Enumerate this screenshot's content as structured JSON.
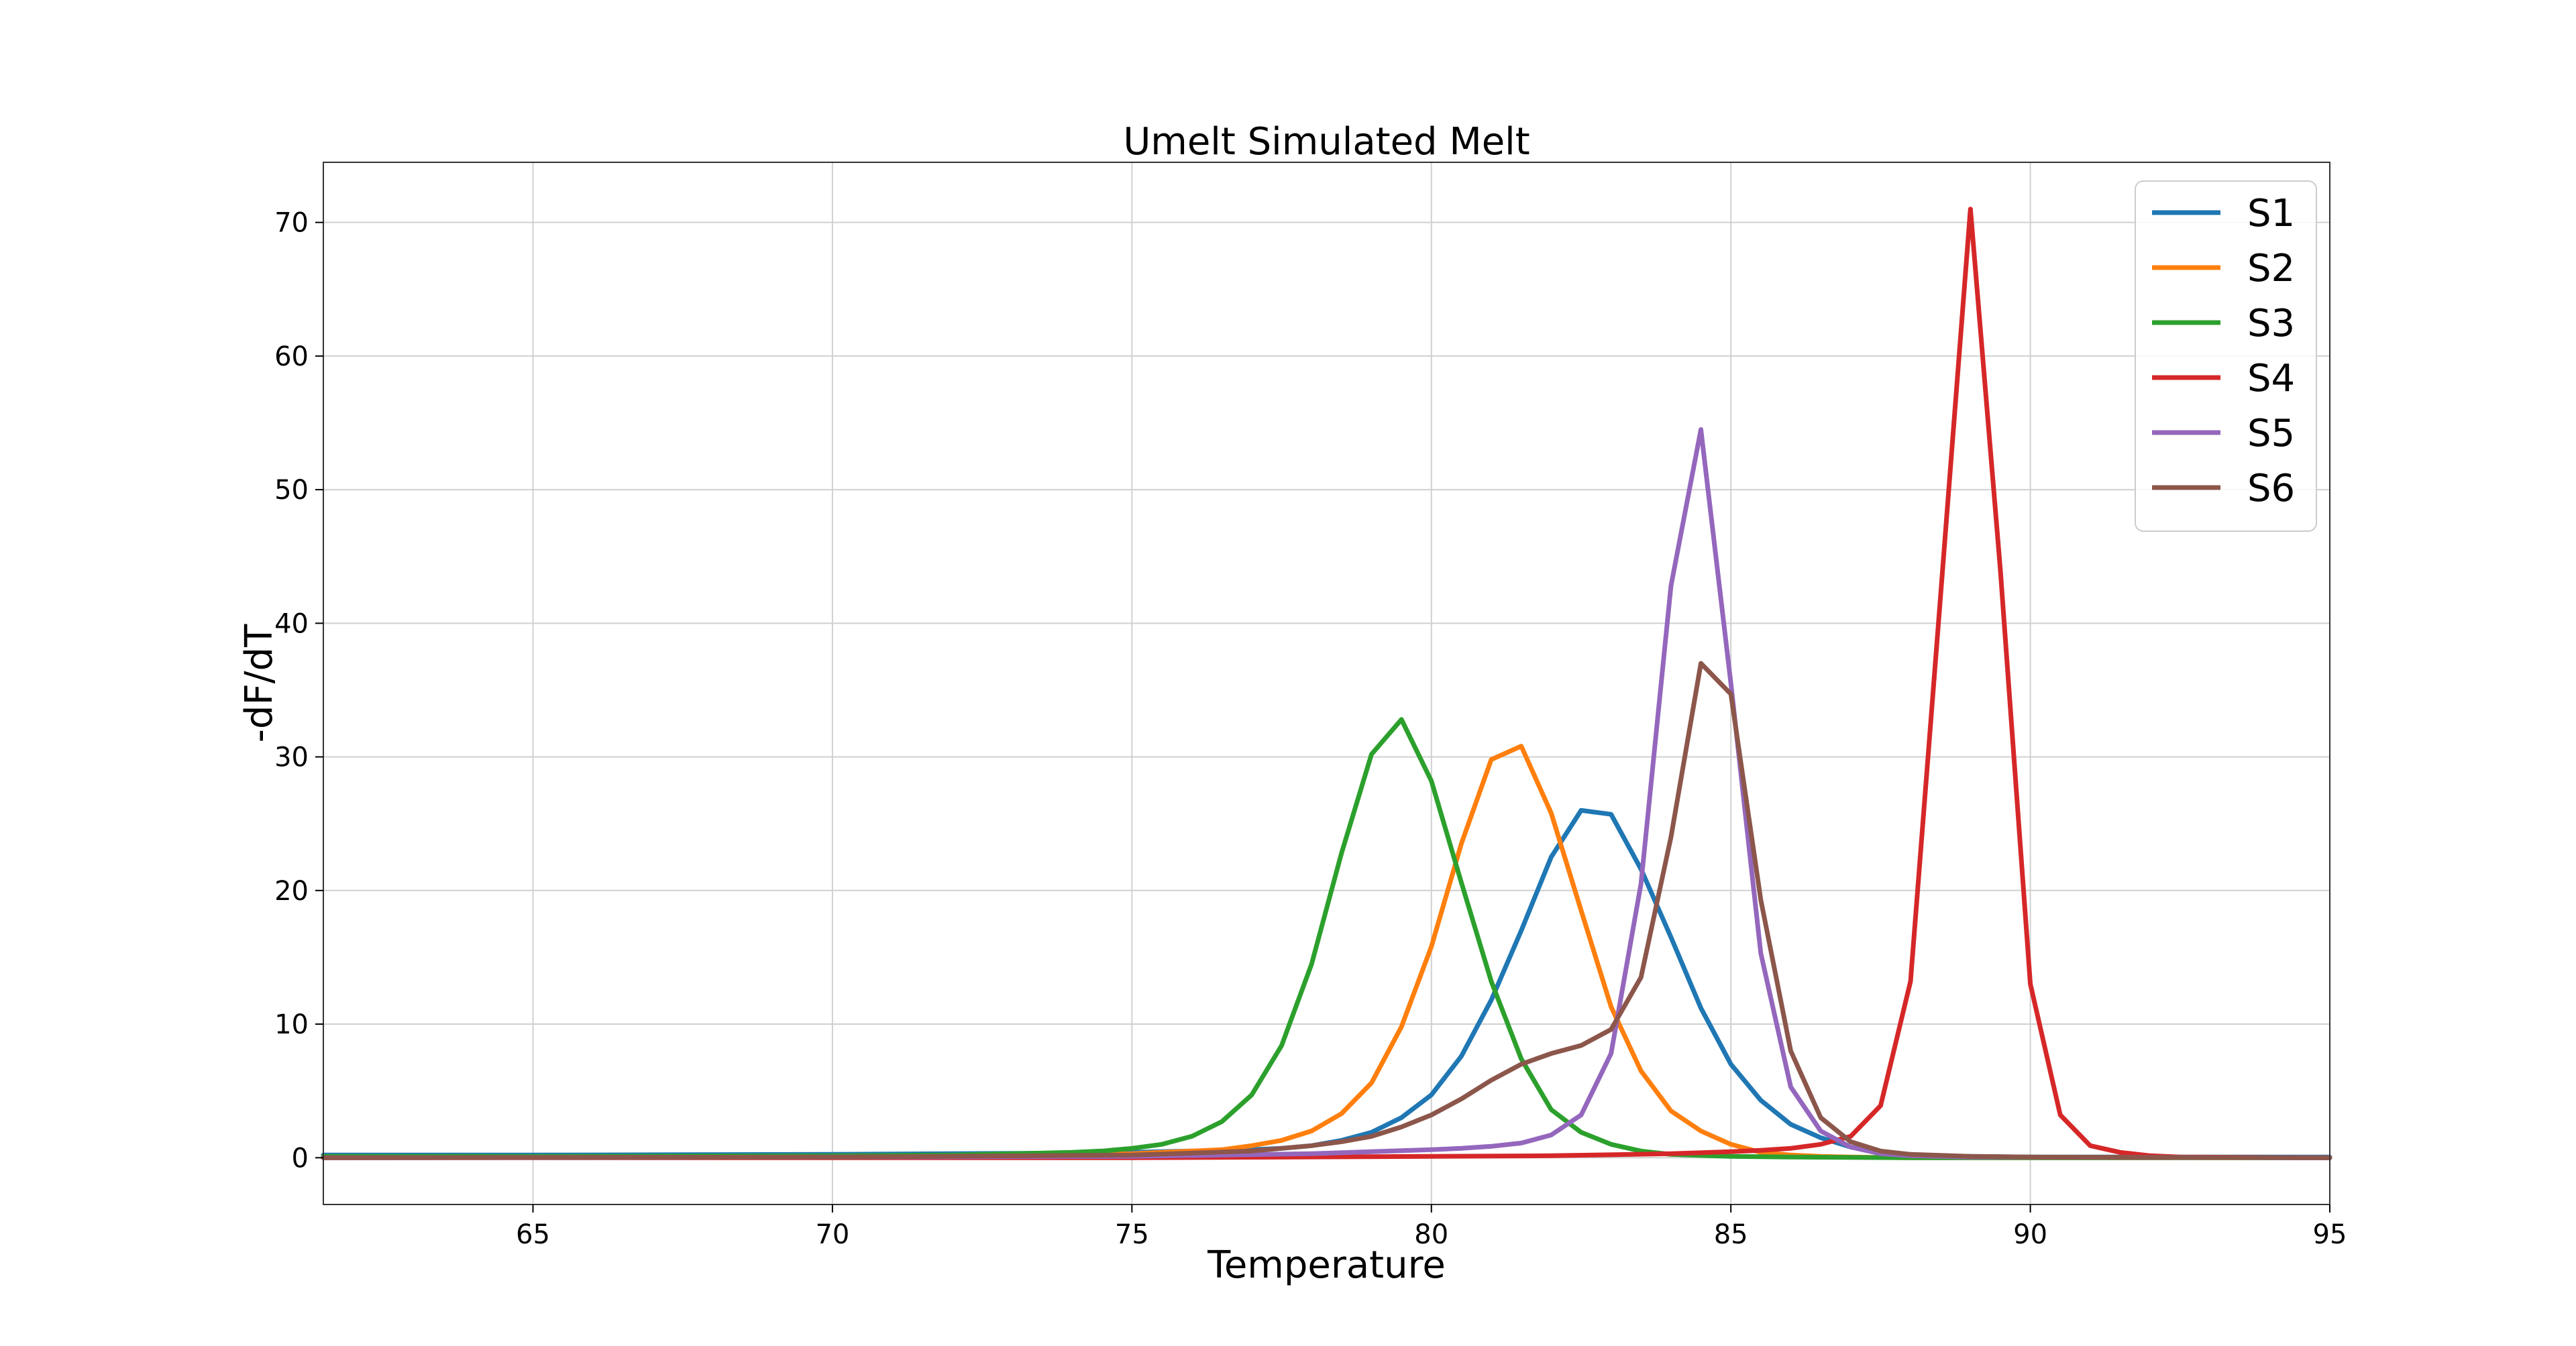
{
  "chart_data": {
    "type": "line",
    "title": "Umelt Simulated Melt",
    "xlabel": "Temperature",
    "ylabel": "-dF/dT",
    "xlim": [
      61.5,
      95
    ],
    "ylim": [
      -3.5,
      74.5
    ],
    "xticks": [
      65,
      70,
      75,
      80,
      85,
      90,
      95
    ],
    "yticks": [
      0,
      10,
      20,
      30,
      40,
      50,
      60,
      70
    ],
    "grid": true,
    "legend_position": "top-right",
    "series": [
      {
        "name": "S1",
        "color": "#1f77b4",
        "x": [
          61.5,
          65,
          70,
          72,
          74,
          75,
          76,
          77,
          77.5,
          78,
          78.5,
          79,
          79.5,
          80,
          80.5,
          81,
          81.5,
          82,
          82.5,
          83,
          83.5,
          84,
          84.5,
          85,
          85.5,
          86,
          86.5,
          87,
          87.5,
          88,
          89,
          90,
          95
        ],
        "y": [
          0.2,
          0.2,
          0.25,
          0.3,
          0.35,
          0.4,
          0.5,
          0.6,
          0.7,
          0.9,
          1.3,
          1.9,
          3.0,
          4.7,
          7.6,
          11.8,
          17.0,
          22.5,
          26.0,
          25.7,
          21.6,
          16.5,
          11.2,
          7.0,
          4.3,
          2.5,
          1.5,
          0.8,
          0.4,
          0.2,
          0.1,
          0.05,
          0.05
        ]
      },
      {
        "name": "S2",
        "color": "#ff7f0e",
        "x": [
          61.5,
          65,
          70,
          72,
          74,
          75,
          76,
          76.5,
          77,
          77.5,
          78,
          78.5,
          79,
          79.5,
          80,
          80.5,
          81,
          81.5,
          82,
          82.5,
          83,
          83.5,
          84,
          84.5,
          85,
          85.5,
          86,
          86.5,
          87,
          88,
          90,
          95
        ],
        "y": [
          0.0,
          0.05,
          0.1,
          0.15,
          0.2,
          0.3,
          0.5,
          0.6,
          0.9,
          1.3,
          2.0,
          3.3,
          5.6,
          9.8,
          15.8,
          23.5,
          29.8,
          30.8,
          25.8,
          18.5,
          11.3,
          6.5,
          3.5,
          2.0,
          1.0,
          0.4,
          0.2,
          0.1,
          0.05,
          0.0,
          0.0,
          0.0
        ]
      },
      {
        "name": "S3",
        "color": "#2ca02c",
        "x": [
          61.5,
          65,
          70,
          72,
          73,
          74,
          74.5,
          75,
          75.5,
          76,
          76.5,
          77,
          77.5,
          78,
          78.5,
          79,
          79.5,
          80,
          80.5,
          81,
          81.5,
          82,
          82.5,
          83,
          83.5,
          84,
          85,
          86,
          88,
          95
        ],
        "y": [
          0.1,
          0.1,
          0.15,
          0.2,
          0.3,
          0.4,
          0.5,
          0.7,
          1.0,
          1.6,
          2.7,
          4.7,
          8.4,
          14.5,
          22.8,
          30.2,
          32.8,
          28.2,
          20.6,
          13.2,
          7.4,
          3.6,
          1.9,
          1.0,
          0.5,
          0.25,
          0.1,
          0.05,
          0.0,
          0.0
        ]
      },
      {
        "name": "S4",
        "color": "#d62728",
        "x": [
          61.5,
          70,
          75,
          80,
          82,
          84,
          85,
          85.5,
          86,
          86.5,
          87,
          87.5,
          88,
          88.5,
          89,
          89.5,
          90,
          90.5,
          91,
          91.5,
          92,
          92.5,
          95
        ],
        "y": [
          0.0,
          0.0,
          0.0,
          0.1,
          0.15,
          0.3,
          0.45,
          0.55,
          0.7,
          1.0,
          1.6,
          3.9,
          13.2,
          42.0,
          71.0,
          44.0,
          13.0,
          3.2,
          0.9,
          0.4,
          0.15,
          0.05,
          0.0
        ]
      },
      {
        "name": "S5",
        "color": "#9467bd",
        "x": [
          61.5,
          70,
          75,
          78,
          79,
          80,
          80.5,
          81,
          81.5,
          82,
          82.5,
          83,
          83.5,
          84,
          84.5,
          85,
          85.5,
          86,
          86.5,
          87,
          87.5,
          88,
          89,
          95
        ],
        "y": [
          0.0,
          0.05,
          0.1,
          0.3,
          0.45,
          0.6,
          0.7,
          0.85,
          1.1,
          1.7,
          3.2,
          7.8,
          20.5,
          42.8,
          54.5,
          35.5,
          15.3,
          5.3,
          2.0,
          0.8,
          0.3,
          0.15,
          0.05,
          0.0
        ]
      },
      {
        "name": "S6",
        "color": "#8c564b",
        "x": [
          61.5,
          70,
          75,
          77,
          78,
          78.5,
          79,
          79.5,
          80,
          80.5,
          81,
          81.5,
          82,
          82.5,
          83,
          83.5,
          84,
          84.5,
          85,
          85.5,
          86,
          86.5,
          87,
          87.5,
          88,
          89,
          90,
          95
        ],
        "y": [
          0.0,
          0.05,
          0.2,
          0.5,
          0.9,
          1.2,
          1.6,
          2.3,
          3.2,
          4.4,
          5.8,
          7.0,
          7.8,
          8.4,
          9.6,
          13.5,
          24.0,
          37.0,
          34.7,
          19.3,
          8.0,
          3.0,
          1.2,
          0.5,
          0.25,
          0.1,
          0.05,
          0.0
        ]
      }
    ]
  }
}
